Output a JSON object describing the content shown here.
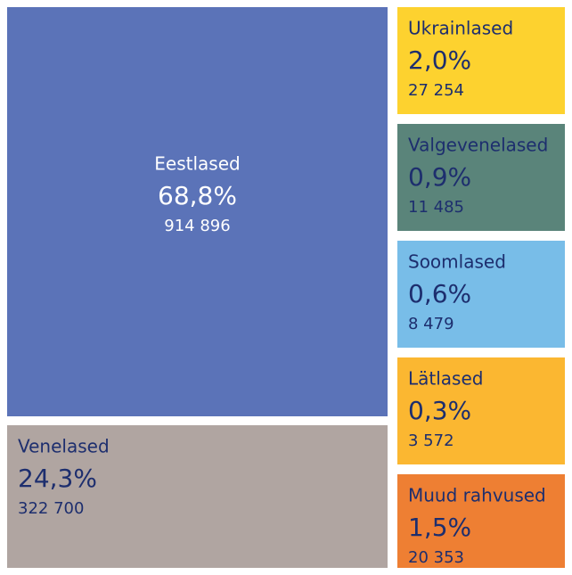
{
  "chart_data": {
    "type": "treemap",
    "categories": [
      "Eestlased",
      "Venelased",
      "Ukrainlased",
      "Valgevenelased",
      "Soomlased",
      "Lätlased",
      "Muud rahvused"
    ],
    "values": [
      68.8,
      24.3,
      2.0,
      0.9,
      0.6,
      0.3,
      1.5
    ],
    "value_labels": [
      "68,8%",
      "24,3%",
      "2,0%",
      "0,9%",
      "0,6%",
      "0,3%",
      "1,5%"
    ],
    "counts": [
      914896,
      322700,
      27254,
      11485,
      8479,
      3572,
      20353
    ],
    "count_labels": [
      "914 896",
      "322 700",
      "27 254",
      "11 485",
      "8 479",
      "3 572",
      "20 353"
    ],
    "colors": [
      "#5b73b8",
      "#b0a5a1",
      "#fdd22f",
      "#5a847a",
      "#78bde8",
      "#fbb731",
      "#ee7f33"
    ]
  }
}
